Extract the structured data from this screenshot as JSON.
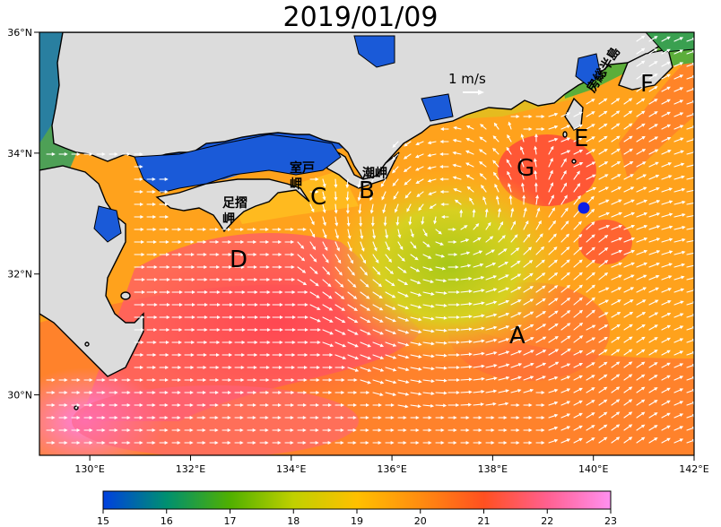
{
  "title": "2019/01/09",
  "scale_label": "1 m/s",
  "axes": {
    "x_ticks": [
      "130°E",
      "132°E",
      "134°E",
      "136°E",
      "138°E",
      "140°E",
      "142°E"
    ],
    "y_ticks": [
      "36°N",
      "34°N",
      "32°N",
      "30°N"
    ]
  },
  "region_labels": [
    "A",
    "B",
    "C",
    "D",
    "E",
    "F",
    "G"
  ],
  "place_labels": {
    "muroto": [
      "室戸",
      "岬"
    ],
    "shiono": [
      "潮岬"
    ],
    "ashizuri": [
      "足摺",
      "岬"
    ],
    "boso": "房総半島"
  },
  "colorbar": {
    "ticks": [
      "15",
      "16",
      "17",
      "18",
      "19",
      "20",
      "21",
      "22",
      "23"
    ],
    "colors": [
      "#0040e0",
      "#009070",
      "#50b000",
      "#c0d000",
      "#ffc000",
      "#ff8c10",
      "#ff5020",
      "#ff6090",
      "#ff90f0"
    ]
  },
  "colors": {
    "land": "#dcdcdc",
    "cold_water": "#1a5ad8",
    "eddy_center": "#a8c818",
    "warm": "#ff9a1a",
    "kuroshio": "#ff5a4e",
    "marker": "#0a1ee6"
  }
}
